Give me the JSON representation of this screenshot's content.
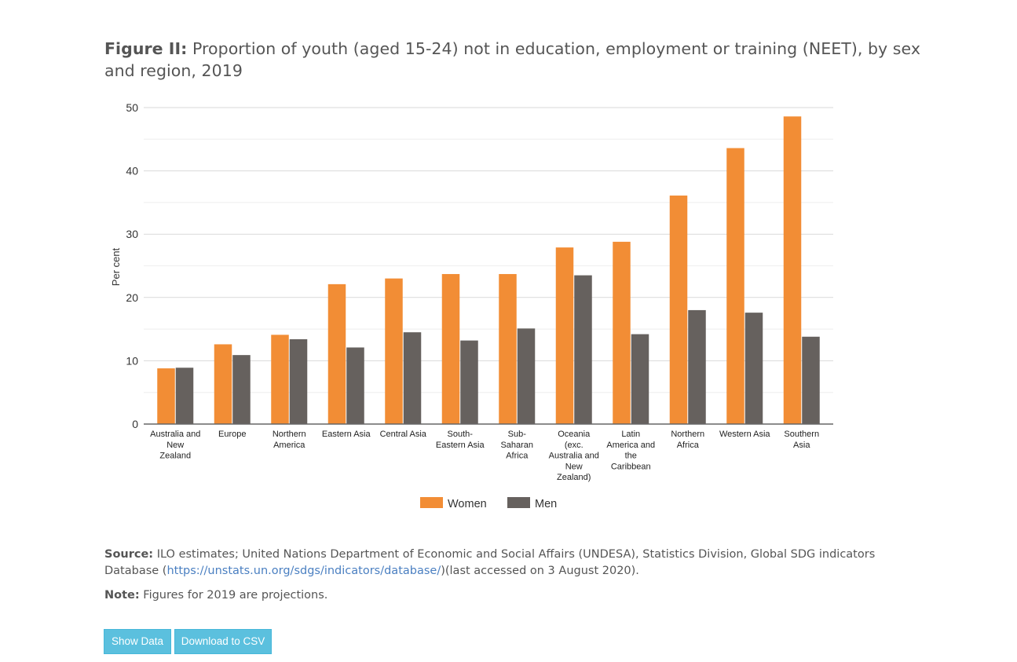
{
  "header": {
    "figure_label": "Figure II:",
    "title_text": " Proportion of youth (aged 15-24) not in education, employment or training (NEET), by sex and region, 2019"
  },
  "chart_data": {
    "type": "bar",
    "ylabel": "Per cent",
    "ylim": [
      0,
      50
    ],
    "yticks": [
      "0",
      "10",
      "20",
      "30",
      "40",
      "50"
    ],
    "categories": [
      "Australia and New Zealand",
      "Europe",
      "Northern America",
      "Eastern Asia",
      "Central Asia",
      "South-Eastern Asia",
      "Sub-Saharan Africa",
      "Oceania (exc. Australia and New Zealand)",
      "Latin America and the Caribbean",
      "Northern Africa",
      "Western Asia",
      "Southern Asia"
    ],
    "category_lines": [
      [
        "Australia and",
        "New",
        "Zealand"
      ],
      [
        "Europe"
      ],
      [
        "Northern",
        "America"
      ],
      [
        "Eastern Asia"
      ],
      [
        "Central Asia"
      ],
      [
        "South-",
        "Eastern Asia"
      ],
      [
        "Sub-",
        "Saharan",
        "Africa"
      ],
      [
        "Oceania",
        "(exc.",
        "Australia and",
        "New",
        "Zealand)"
      ],
      [
        "Latin",
        "America and",
        "the",
        "Caribbean"
      ],
      [
        "Northern",
        "Africa"
      ],
      [
        "Western Asia"
      ],
      [
        "Southern",
        "Asia"
      ]
    ],
    "series": [
      {
        "name": "Women",
        "color": "#f28d35",
        "values": [
          8.8,
          12.6,
          14.1,
          22.1,
          23.0,
          23.7,
          23.7,
          27.9,
          28.8,
          36.1,
          43.6,
          48.6
        ]
      },
      {
        "name": "Men",
        "color": "#66615e",
        "values": [
          8.9,
          10.9,
          13.4,
          12.1,
          14.5,
          13.2,
          15.1,
          23.5,
          14.2,
          18.0,
          17.6,
          13.8
        ]
      }
    ],
    "grid": true,
    "legend_position": "bottom-center"
  },
  "footer": {
    "source_label": "Source:",
    "source_text": " ILO estimates; United Nations Department of Economic and Social Affairs (UNDESA), Statistics Division, Global SDG indicators Database (",
    "source_link": "https://unstats.un.org/sdgs/indicators/database/",
    "source_tail": ")(last accessed on 3 August 2020).",
    "note_label": "Note:",
    "note_text": " Figures for 2019 are projections."
  },
  "buttons": {
    "show_data": "Show Data",
    "download_csv": "Download to CSV"
  }
}
